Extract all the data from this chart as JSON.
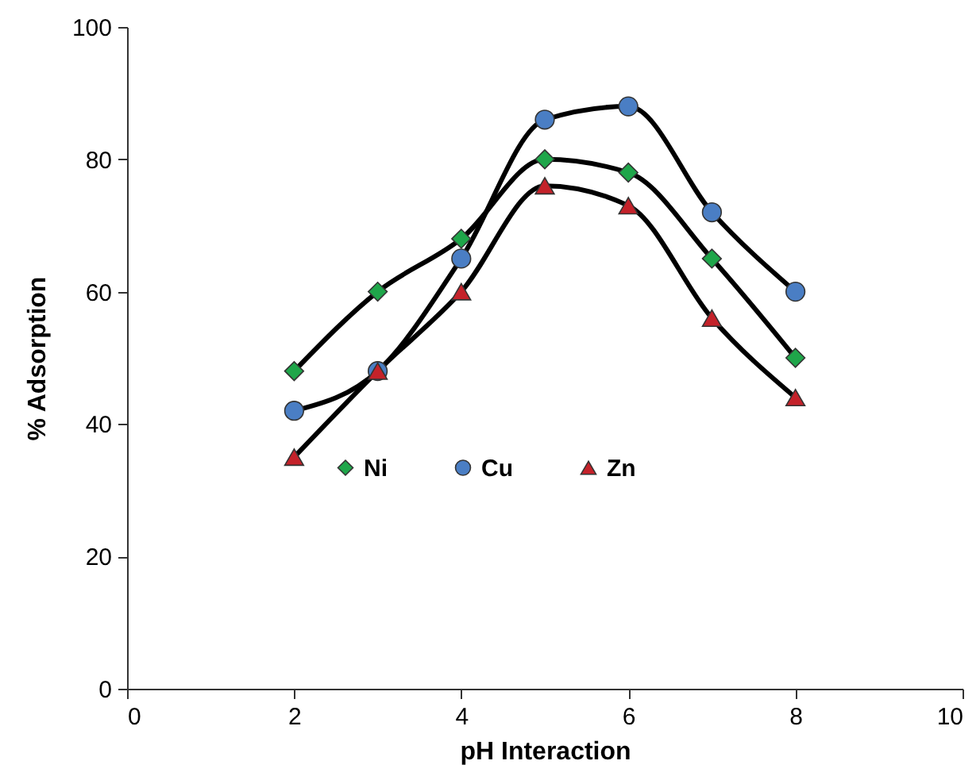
{
  "chart_data": {
    "type": "line",
    "xlabel": "pH Interaction",
    "ylabel": "%  Adsorption",
    "x": [
      2,
      3,
      4,
      5,
      6,
      7,
      8
    ],
    "series": [
      {
        "name": "Ni",
        "color": "#1fa64a",
        "marker": "diamond",
        "values": [
          48,
          60,
          68,
          80,
          78,
          65,
          50
        ]
      },
      {
        "name": "Cu",
        "color": "#4a7ec4",
        "marker": "circle",
        "values": [
          42,
          48,
          65,
          86,
          88,
          72,
          60
        ]
      },
      {
        "name": "Zn",
        "color": "#c4222a",
        "marker": "triangle",
        "values": [
          35,
          48,
          60,
          76,
          73,
          56,
          44
        ]
      }
    ],
    "xlim": [
      0,
      10
    ],
    "xticks": [
      0,
      2,
      4,
      6,
      8,
      10
    ],
    "ylim": [
      0,
      100
    ],
    "yticks": [
      0,
      20,
      40,
      60,
      80,
      100
    ],
    "grid": false,
    "legend": "center",
    "line_style": "solid"
  }
}
